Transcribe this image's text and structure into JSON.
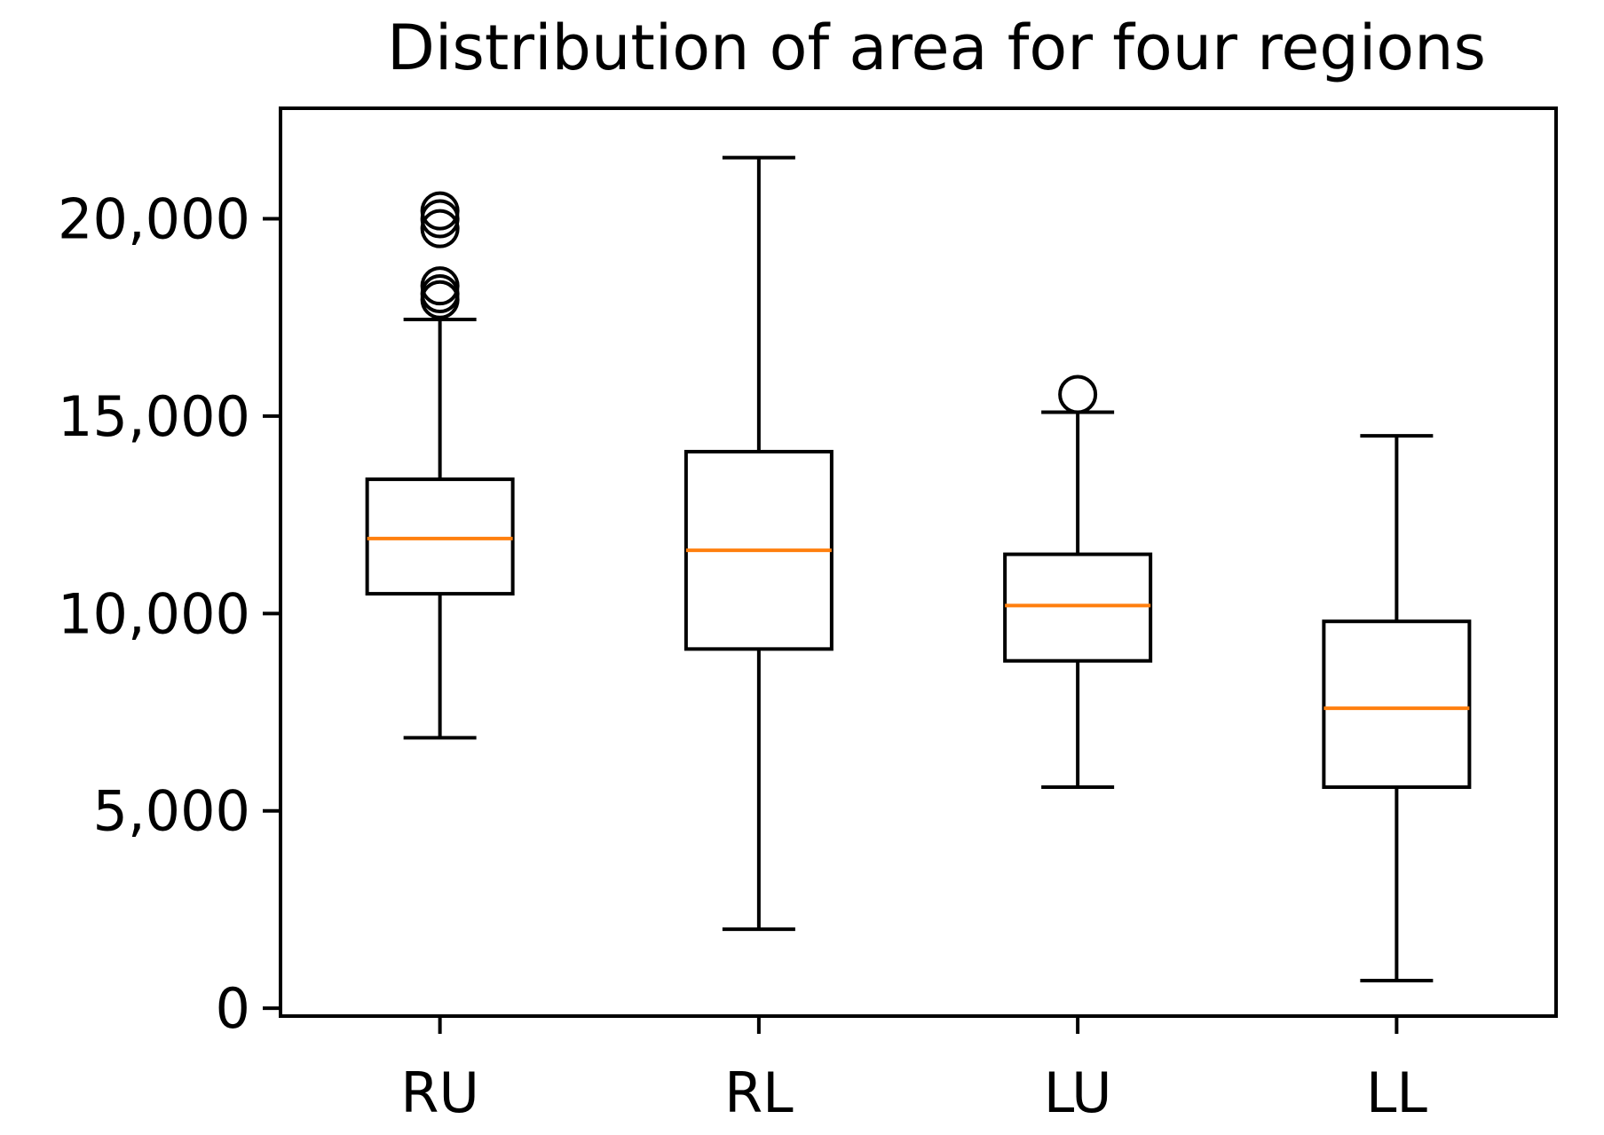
{
  "chart_data": {
    "type": "box",
    "title": "Distribution of area for four regions",
    "xlabel": "",
    "ylabel": "",
    "ylim": [
      -200,
      22800
    ],
    "yticks": [
      0,
      5000,
      10000,
      15000,
      20000
    ],
    "ytick_labels": [
      "0",
      "5,000",
      "10,000",
      "15,000",
      "20,000"
    ],
    "categories": [
      "RU",
      "RL",
      "LU",
      "LL"
    ],
    "boxes": [
      {
        "label": "RU",
        "whisker_low": 6850,
        "q1": 10500,
        "median": 11900,
        "q3": 13400,
        "whisker_high": 17450,
        "outliers": [
          17950,
          18100,
          18300,
          19750,
          20000,
          20200
        ]
      },
      {
        "label": "RL",
        "whisker_low": 2000,
        "q1": 9100,
        "median": 11600,
        "q3": 14100,
        "whisker_high": 21550,
        "outliers": []
      },
      {
        "label": "LU",
        "whisker_low": 5600,
        "q1": 8800,
        "median": 10200,
        "q3": 11500,
        "whisker_high": 15100,
        "outliers": [
          15550
        ]
      },
      {
        "label": "LL",
        "whisker_low": 700,
        "q1": 5600,
        "median": 7600,
        "q3": 9800,
        "whisker_high": 14500,
        "outliers": []
      }
    ],
    "grid": false,
    "colors": {
      "box": "#000000",
      "median": "#ff7f0e",
      "outlier": "#000000"
    }
  }
}
